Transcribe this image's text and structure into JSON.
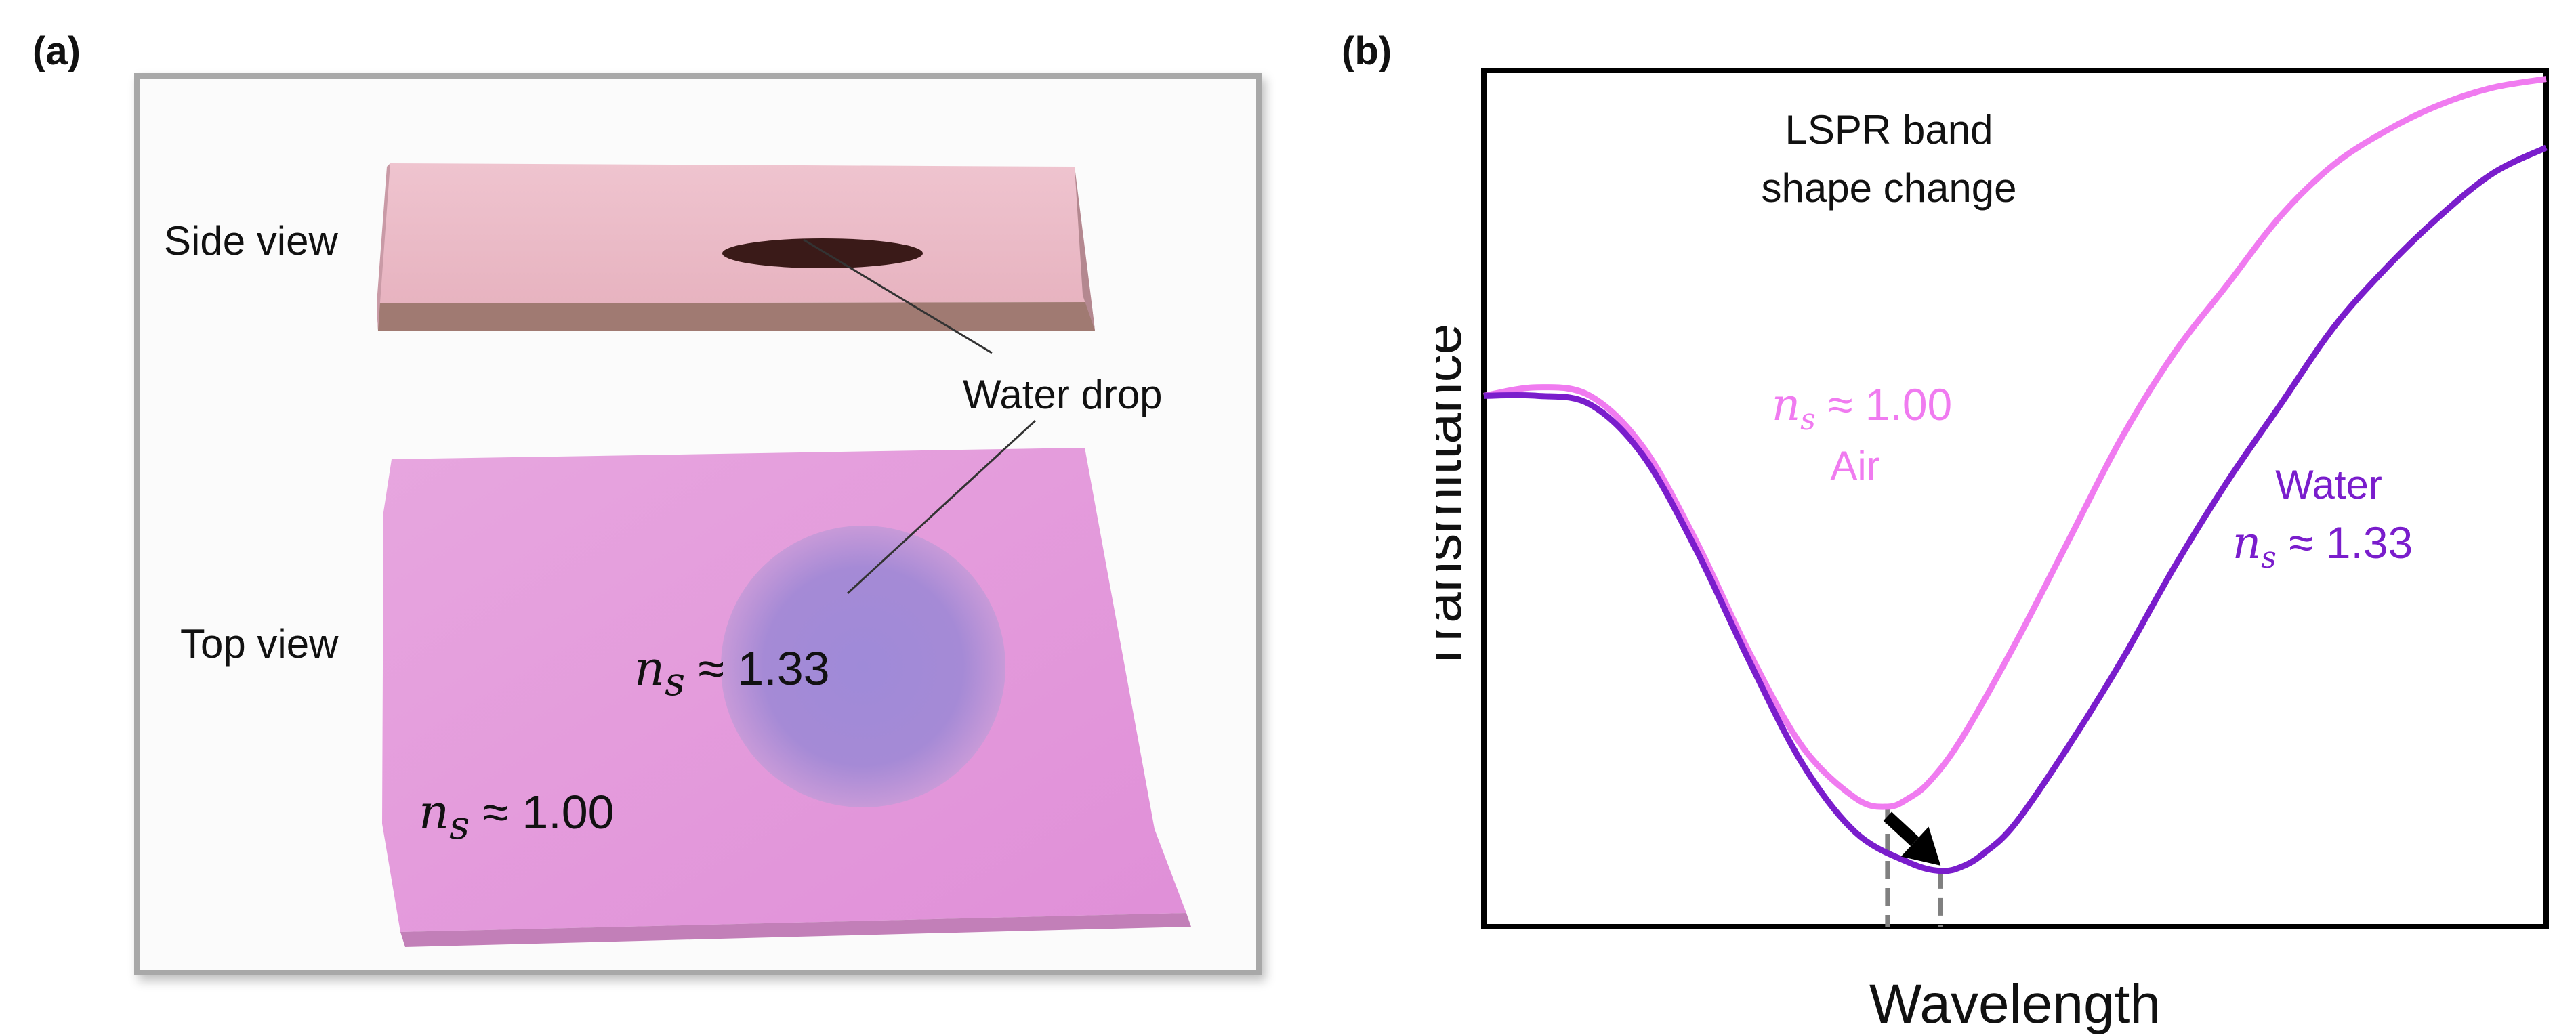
{
  "panels": {
    "a": {
      "label": "(a)"
    },
    "b": {
      "label": "(b)"
    }
  },
  "photo": {
    "side_view_label": "Side view",
    "top_view_label": "Top view",
    "water_drop_label": "Water drop",
    "ns_symbol": "n",
    "ns_subscript": "s",
    "approx": "≈",
    "ns_water_value": "1.33",
    "ns_air_value": "1.00"
  },
  "chart_data": {
    "type": "line",
    "title": "",
    "xlabel": "Wavelength",
    "ylabel": "Transmittance",
    "x_ticks": [],
    "y_ticks": [],
    "xlim": [
      0,
      100
    ],
    "ylim": [
      0,
      100
    ],
    "grid": false,
    "annotation": {
      "line1": "LSPR band",
      "line2": "shape change"
    },
    "series": [
      {
        "name": "Air",
        "label_line1_symbol": "n",
        "label_line1_sub": "s",
        "label_line1_approx": "≈",
        "label_line1_value": "1.00",
        "label_line2": "Air",
        "color": "#f07bf0",
        "x": [
          0,
          5,
          10,
          15,
          20,
          25,
          30,
          35,
          38,
          40,
          42,
          45,
          50,
          55,
          60,
          65,
          70,
          75,
          80,
          85,
          90,
          95,
          100
        ],
        "y": [
          62,
          63,
          62,
          56,
          45,
          32,
          21,
          15,
          14,
          15,
          17,
          22,
          33,
          45,
          57,
          67,
          75,
          83,
          89,
          93,
          96,
          98,
          99
        ]
      },
      {
        "name": "Water",
        "label_line1": "Water",
        "label_line2_symbol": "n",
        "label_line2_sub": "s",
        "label_line2_approx": "≈",
        "label_line2_value": "1.33",
        "color": "#7a1dcc",
        "x": [
          0,
          5,
          10,
          15,
          20,
          25,
          30,
          35,
          40,
          43,
          45,
          47,
          50,
          55,
          60,
          65,
          70,
          75,
          80,
          85,
          90,
          95,
          100
        ],
        "y": [
          62,
          62,
          61,
          55,
          44,
          31,
          19,
          11,
          7.5,
          6.5,
          7,
          8.5,
          12,
          21,
          31,
          42,
          52,
          61,
          70,
          77,
          83,
          88,
          91
        ]
      }
    ],
    "minima_markers": [
      {
        "series": "Air",
        "x": 38,
        "y": 14
      },
      {
        "series": "Water",
        "x": 43,
        "y": 6.5
      }
    ]
  },
  "colors": {
    "air": "#f07bf0",
    "water": "#7a1dcc",
    "axis": "#000000",
    "dashed": "#808080"
  }
}
